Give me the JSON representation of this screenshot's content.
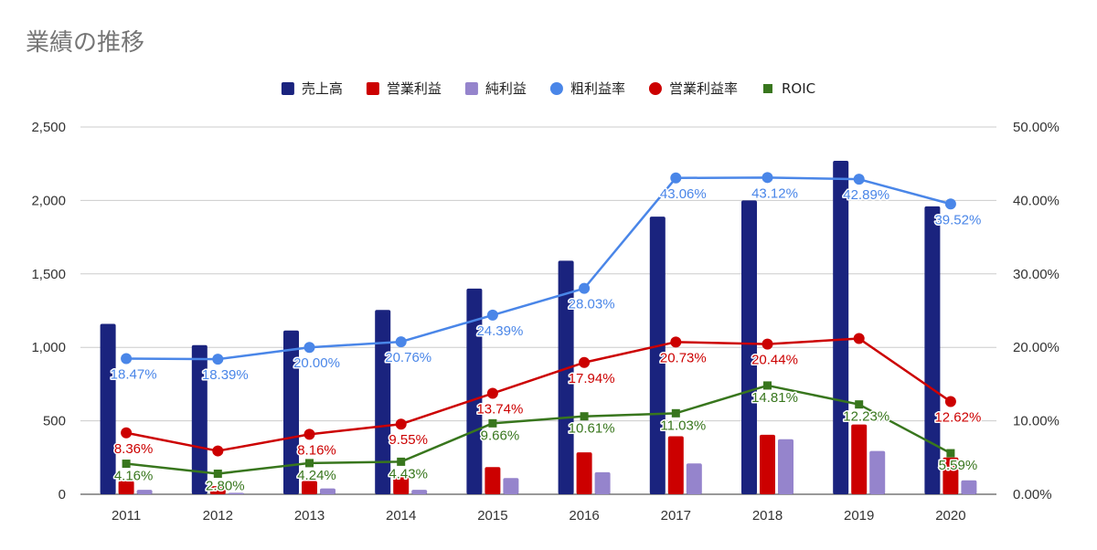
{
  "chart_data": {
    "type": "bar",
    "title": "業績の推移",
    "categories": [
      "2011",
      "2012",
      "2013",
      "2014",
      "2015",
      "2016",
      "2017",
      "2018",
      "2019",
      "2020"
    ],
    "y_left": {
      "ylim": [
        0,
        2500
      ],
      "ticks": [
        "0",
        "500",
        "1,000",
        "1,500",
        "2,000",
        "2,500"
      ],
      "tick_values": [
        0,
        500,
        1000,
        1500,
        2000,
        2500
      ]
    },
    "y_right": {
      "ylim": [
        0,
        50
      ],
      "ticks": [
        "0.00%",
        "10.00%",
        "20.00%",
        "30.00%",
        "40.00%",
        "50.00%"
      ],
      "tick_values": [
        0,
        10,
        20,
        30,
        40,
        50
      ]
    },
    "grid": true,
    "legend_position": "top-center",
    "series": [
      {
        "name": "売上高",
        "type": "bar",
        "axis": "left",
        "color": "#1a237e",
        "values": [
          1160,
          1015,
          1115,
          1255,
          1400,
          1590,
          1890,
          2000,
          2270,
          1960
        ]
      },
      {
        "name": "営業利益",
        "type": "bar",
        "axis": "left",
        "color": "#cc0000",
        "values": [
          90,
          55,
          90,
          120,
          185,
          285,
          395,
          405,
          475,
          250
        ]
      },
      {
        "name": "純利益",
        "type": "bar",
        "axis": "left",
        "color": "#9584cc",
        "values": [
          30,
          10,
          40,
          30,
          110,
          150,
          210,
          375,
          295,
          95
        ]
      },
      {
        "name": "粗利益率",
        "type": "line",
        "axis": "right",
        "color": "#4a86e8",
        "marker": "circle",
        "values": [
          18.47,
          18.39,
          20.0,
          20.76,
          24.39,
          28.03,
          43.06,
          43.12,
          42.89,
          39.52
        ],
        "labels": [
          "18.47%",
          "18.39%",
          "20.00%",
          "20.76%",
          "24.39%",
          "28.03%",
          "43.06%",
          "43.12%",
          "42.89%",
          "39.52%"
        ]
      },
      {
        "name": "営業利益率",
        "type": "line",
        "axis": "right",
        "color": "#cc0000",
        "marker": "circle",
        "values": [
          8.36,
          5.9,
          8.16,
          9.55,
          13.74,
          17.94,
          20.73,
          20.44,
          21.2,
          12.62
        ],
        "labels": [
          "8.36%",
          "",
          "8.16%",
          "9.55%",
          "13.74%",
          "17.94%",
          "20.73%",
          "20.44%",
          "",
          "12.62%"
        ]
      },
      {
        "name": "ROIC",
        "type": "line",
        "axis": "right",
        "color": "#38761d",
        "marker": "square",
        "values": [
          4.16,
          2.8,
          4.24,
          4.43,
          9.66,
          10.61,
          11.03,
          14.81,
          12.23,
          5.59
        ],
        "labels": [
          "4.16%",
          "2.80%",
          "4.24%",
          "4.43%",
          "9.66%",
          "10.61%",
          "11.03%",
          "14.81%",
          "12.23%",
          "5.59%"
        ]
      }
    ]
  }
}
